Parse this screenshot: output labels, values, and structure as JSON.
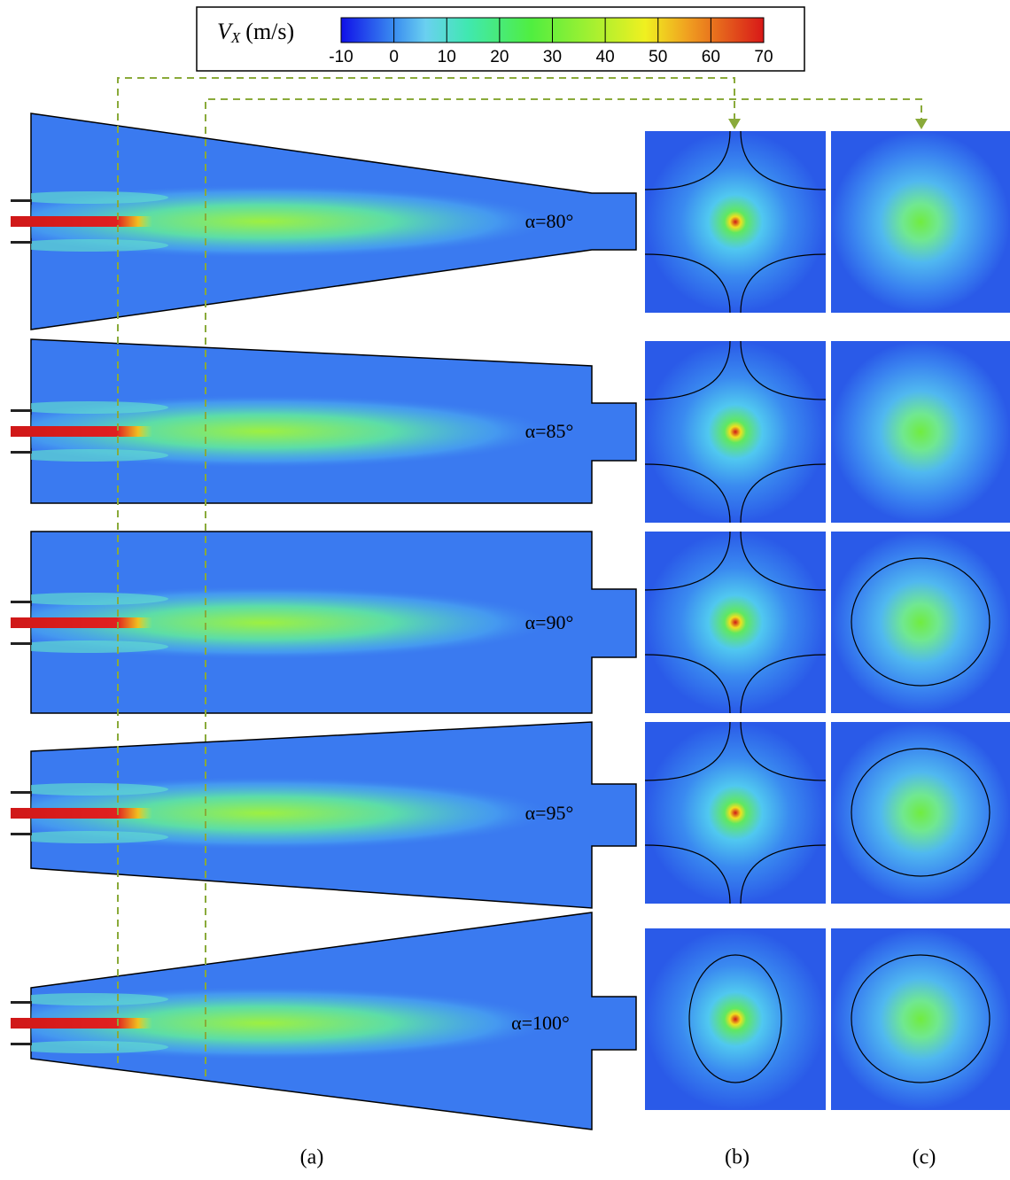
{
  "colorbar": {
    "symbol": "V",
    "subscript": "X",
    "unit": "(m/s)",
    "range": [
      -10,
      70
    ],
    "ticks": [
      -10,
      0,
      10,
      20,
      30,
      40,
      50,
      60,
      70
    ]
  },
  "rows": [
    {
      "label": "α=80°"
    },
    {
      "label": "α=85°"
    },
    {
      "label": "α=90°"
    },
    {
      "label": "α=95°"
    },
    {
      "label": "α=100°"
    }
  ],
  "panel_labels": [
    "(a)",
    "(b)",
    "(c)"
  ]
}
